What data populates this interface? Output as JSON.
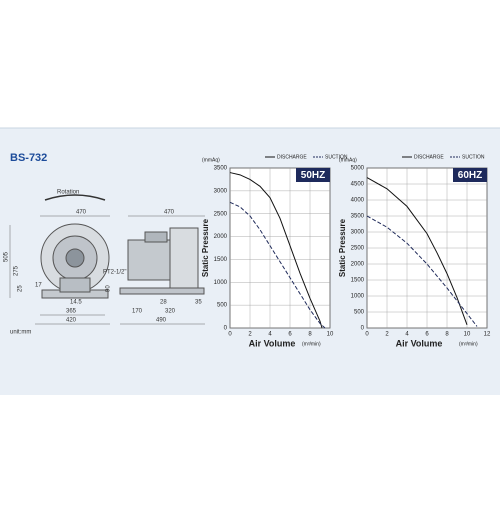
{
  "header": {
    "title": "BS-732"
  },
  "drawing": {
    "labels": [
      "Rotation",
      "470",
      "505",
      "275",
      "25",
      "17",
      "14.5",
      "365",
      "420",
      "unit:mm",
      "470",
      "PT2-1/2\"",
      "90",
      "28",
      "35",
      "170",
      "320",
      "490"
    ]
  },
  "chart_data": [
    {
      "type": "line",
      "badge": "50HZ",
      "y_unit": "(mmAq)",
      "xlabel": "Air Volume",
      "x_unit": "(m³/min)",
      "ylabel": "Static Pressure",
      "xlim": [
        0,
        10
      ],
      "xticks": [
        0,
        2,
        4,
        6,
        8,
        10
      ],
      "ylim": [
        0,
        3500
      ],
      "yticks": [
        0,
        500,
        1000,
        1500,
        2000,
        2500,
        3000,
        3500
      ],
      "grid": true,
      "series": [
        {
          "name": "DISCHARGE",
          "color": "#111111",
          "dash": false,
          "x": [
            0,
            1,
            2,
            3,
            4,
            5,
            6,
            7,
            8,
            9,
            9.2
          ],
          "values": [
            3400,
            3350,
            3250,
            3100,
            2850,
            2400,
            1800,
            1200,
            650,
            150,
            0
          ]
        },
        {
          "name": "SUCTION",
          "color": "#1f2a5a",
          "dash": true,
          "x": [
            0,
            1,
            2,
            3,
            4,
            5,
            6,
            7,
            8,
            9,
            9.5
          ],
          "values": [
            2750,
            2650,
            2450,
            2150,
            1800,
            1450,
            1100,
            750,
            400,
            100,
            0
          ]
        }
      ]
    },
    {
      "type": "line",
      "badge": "60HZ",
      "y_unit": "(mmAq)",
      "xlabel": "Air Volume",
      "x_unit": "(m³/min)",
      "ylabel": "Static Pressure",
      "xlim": [
        0,
        12
      ],
      "xticks": [
        0,
        2,
        4,
        6,
        8,
        10,
        12
      ],
      "ylim": [
        0,
        5000
      ],
      "yticks": [
        0,
        500,
        1000,
        1500,
        2000,
        2500,
        3000,
        3500,
        4000,
        4500,
        5000
      ],
      "grid": true,
      "series": [
        {
          "name": "DISCHARGE",
          "color": "#111111",
          "dash": false,
          "x": [
            0,
            2,
            4,
            6,
            7,
            8,
            9,
            10
          ],
          "values": [
            4700,
            4350,
            3800,
            2950,
            2350,
            1700,
            950,
            100
          ]
        },
        {
          "name": "SUCTION",
          "color": "#1f2a5a",
          "dash": true,
          "x": [
            0,
            2,
            4,
            6,
            8,
            9,
            10,
            11
          ],
          "values": [
            3500,
            3150,
            2650,
            2000,
            1250,
            850,
            450,
            50
          ]
        }
      ]
    }
  ]
}
